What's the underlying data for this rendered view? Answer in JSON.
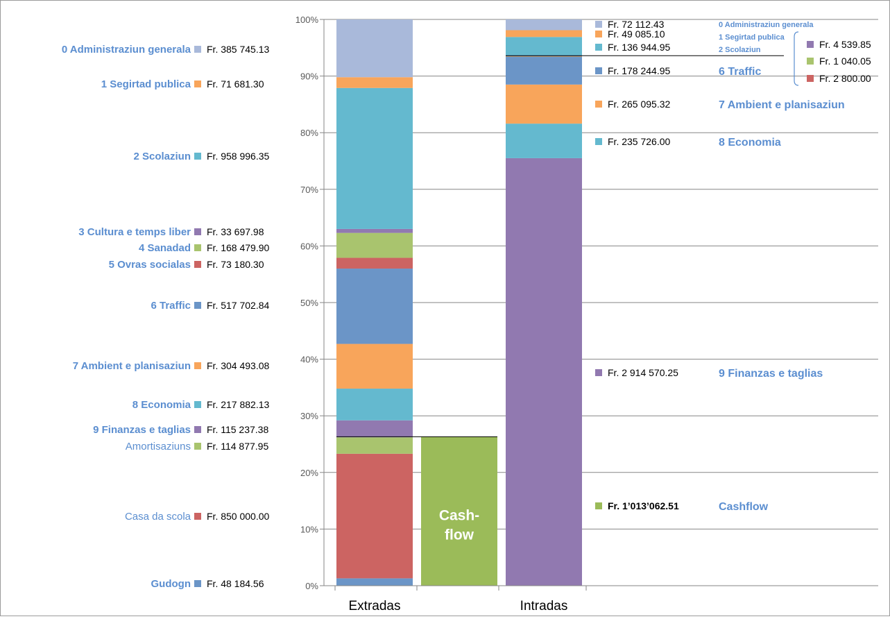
{
  "chart_data": {
    "type": "bar",
    "stacked": true,
    "categories": [
      "Extradas",
      "Intradas"
    ],
    "y_ticks": [
      "0%",
      "10%",
      "20%",
      "30%",
      "40%",
      "50%",
      "60%",
      "70%",
      "80%",
      "90%",
      "100%"
    ],
    "ylim": [
      0,
      100
    ],
    "grid": true,
    "colors": {
      "blue": "#6b95c7",
      "red": "#cc6462",
      "green": "#a9c46e",
      "purple": "#9179b0",
      "teal": "#64b9cf",
      "orange": "#f8a55b",
      "lightblue": "#a9b9da",
      "cashflow": "#9bbb59",
      "label": "#5b8ed0"
    },
    "extradas": [
      {
        "label": "Gudogn",
        "value_text": "Fr. 48 184.56",
        "pct": 1.3,
        "color": "blue",
        "bold": true
      },
      {
        "label": "Casa da scola",
        "value_text": "Fr. 850 000.00",
        "pct": 22.0,
        "color": "red",
        "bold": false
      },
      {
        "label": "Amortisaziuns",
        "value_text": "Fr. 114 877.95",
        "pct": 2.9,
        "color": "green",
        "bold": false
      },
      {
        "label": "9 Finanzas e taglias",
        "value_text": "Fr. 115 237.38",
        "pct": 3.0,
        "color": "purple",
        "bold": true
      },
      {
        "label": "8 Economia",
        "value_text": "Fr. 217 882.13",
        "pct": 5.6,
        "color": "teal",
        "bold": true
      },
      {
        "label": "7 Ambient e planisaziun",
        "value_text": "Fr. 304 493.08",
        "pct": 7.9,
        "color": "orange",
        "bold": true
      },
      {
        "label": "6 Traffic",
        "value_text": "Fr. 517 702.84",
        "pct": 13.3,
        "color": "blue",
        "bold": true
      },
      {
        "label": "5 Ovras socialas",
        "value_text": "Fr. 73 180.30",
        "pct": 1.9,
        "color": "red",
        "bold": true
      },
      {
        "label": "4 Sanadad",
        "value_text": "Fr. 168 479.90",
        "pct": 4.4,
        "color": "green",
        "bold": true
      },
      {
        "label": "3 Cultura e temps liber",
        "value_text": "Fr. 33 697.98",
        "pct": 0.7,
        "color": "purple",
        "bold": true
      },
      {
        "label": "2 Scolaziun",
        "value_text": "Fr. 958 996.35",
        "pct": 24.9,
        "color": "teal",
        "bold": true
      },
      {
        "label": "1 Segirtad publica",
        "value_text": "Fr. 71 681.30",
        "pct": 1.9,
        "color": "orange",
        "bold": true
      },
      {
        "label": "0 Administraziun generala",
        "value_text": "Fr. 385 745.13",
        "pct": 10.2,
        "color": "lightblue",
        "bold": true
      }
    ],
    "cashflow": {
      "label": "Cashflow",
      "bar_text": [
        "Cash-",
        "flow"
      ],
      "value_text": "Fr. 1’013’062.51",
      "pct": 26.3,
      "color": "cashflow"
    },
    "intradas": [
      {
        "label": "9 Finanzas e taglias",
        "value_text": "Fr. 2 914 570.25",
        "pct": 75.5,
        "color": "purple"
      },
      {
        "label": "8 Economia",
        "value_text": "Fr. 235 726.00",
        "pct": 6.1,
        "color": "teal"
      },
      {
        "label": "7 Ambient e planisaziun",
        "value_text": "Fr. 265 095.32",
        "pct": 6.9,
        "color": "orange"
      },
      {
        "label": "6 Traffic",
        "value_text": "Fr. 178 244.95",
        "pct": 4.9,
        "color": "blue"
      },
      {
        "label": "Fr. 2 800.00",
        "value_text": "",
        "pct": 0.07,
        "color": "red"
      },
      {
        "label": "Fr. 1 040.05",
        "value_text": "",
        "pct": 0.03,
        "color": "green"
      },
      {
        "label": "Fr. 4 539.85",
        "value_text": "",
        "pct": 0.1,
        "color": "purple"
      },
      {
        "label": "2 Scolaziun",
        "value_text": "Fr. 136 944.95",
        "pct": 3.3,
        "color": "teal"
      },
      {
        "label": "1 Segirtad publica",
        "value_text": "Fr. 49 085.10",
        "pct": 1.2,
        "color": "orange"
      },
      {
        "label": "0 Administraziun generala",
        "value_text": "Fr. 72 112.43",
        "pct": 1.9,
        "color": "lightblue"
      }
    ],
    "intradas_small_group": {
      "labels": [
        "0 Administraziun generala",
        "1 Segirtad publica",
        "2 Scolaziun"
      ],
      "items": [
        {
          "value_text": "Fr. 4 539.85",
          "color": "purple"
        },
        {
          "value_text": "Fr. 1 040.05",
          "color": "green"
        },
        {
          "value_text": "Fr. 2 800.00",
          "color": "red"
        }
      ]
    }
  }
}
